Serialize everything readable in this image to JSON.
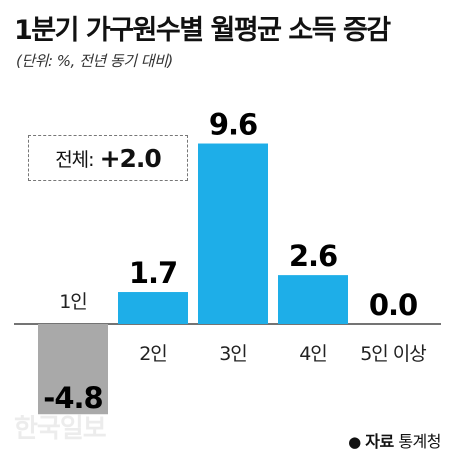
{
  "title": "1분기 가구원수별 월평균 소득 증감",
  "subtitle": "(단위: %, 전년 동기 대비)",
  "summary": {
    "label": "전체:",
    "value": "+2.0"
  },
  "chart_data": {
    "type": "bar",
    "categories": [
      "1인",
      "2인",
      "3인",
      "4인",
      "5인 이상"
    ],
    "values": [
      -4.8,
      1.7,
      9.6,
      2.6,
      0.0
    ],
    "value_labels": [
      "-4.8",
      "1.7",
      "9.6",
      "2.6",
      "0.0"
    ],
    "colors": {
      "positive": "#1eaee8",
      "negative": "#a9a9a9"
    },
    "grid": false
  },
  "watermark": "한국일보",
  "source": {
    "bullet": "●",
    "label": "자료",
    "text": "통계청"
  }
}
